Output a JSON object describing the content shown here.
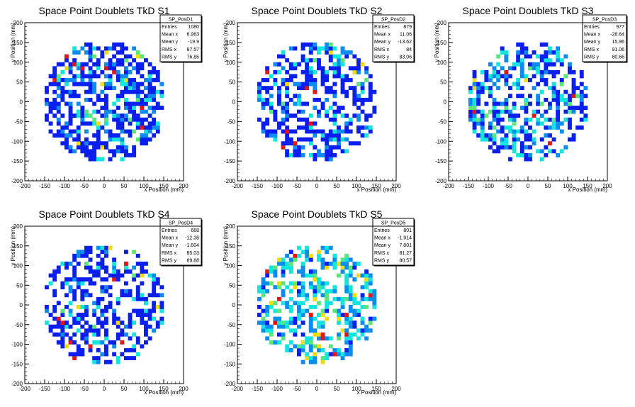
{
  "chart_data": [
    {
      "type": "heatmap",
      "title": "Space Point Doublets TkD S1",
      "xlabel": "x Position (mm)",
      "ylabel": "y Position (mm)",
      "xlim": [
        -200,
        200
      ],
      "ylim": [
        -200,
        200
      ],
      "xticks": [
        -200,
        -150,
        -100,
        -50,
        0,
        50,
        100,
        150,
        200
      ],
      "yticks": [
        -200,
        -150,
        -100,
        -50,
        0,
        50,
        100,
        150,
        200
      ],
      "stats": {
        "name": "SP_PosD1",
        "rows": [
          [
            "Entries",
            "1080"
          ],
          [
            "Mean x",
            "6.963"
          ],
          [
            "Mean y",
            "-19.9"
          ],
          [
            "RMS x",
            "87.57"
          ],
          [
            "RMS y",
            "76.85"
          ]
        ]
      },
      "seed": 11,
      "fill": 0.58,
      "level_weights": [
        0.62,
        0.22,
        0.11,
        0.02,
        0.02,
        0.01
      ],
      "hot_cells": [
        [
          95,
          -15,
          5
        ],
        [
          90,
          -75,
          5
        ],
        [
          85,
          5,
          3
        ]
      ]
    },
    {
      "type": "heatmap",
      "title": "Space Point Doublets TkD S2",
      "xlabel": "x Position (mm)",
      "ylabel": "y Position (mm)",
      "xlim": [
        -200,
        200
      ],
      "ylim": [
        -200,
        200
      ],
      "xticks": [
        -200,
        -150,
        -100,
        -50,
        0,
        50,
        100,
        150,
        200
      ],
      "yticks": [
        -200,
        -150,
        -100,
        -50,
        0,
        50,
        100,
        150,
        200
      ],
      "stats": {
        "name": "SP_PosD2",
        "rows": [
          [
            "Entries",
            "879"
          ],
          [
            "Mean x",
            "11.06"
          ],
          [
            "Mean y",
            "-13.62"
          ],
          [
            "RMS x",
            "84"
          ],
          [
            "RMS y",
            "83.06"
          ]
        ]
      },
      "seed": 23,
      "fill": 0.5,
      "level_weights": [
        0.66,
        0.18,
        0.12,
        0.02,
        0.01,
        0.01
      ],
      "hot_cells": [
        [
          -75,
          -75,
          5
        ],
        [
          115,
          -105,
          5
        ],
        [
          125,
          55,
          3
        ],
        [
          155,
          -25,
          3
        ]
      ]
    },
    {
      "type": "heatmap",
      "title": "Space Point Doublets TkD S3",
      "xlabel": "x Position (mm)",
      "ylabel": "y Position (mm)",
      "xlim": [
        -200,
        200
      ],
      "ylim": [
        -200,
        200
      ],
      "xticks": [
        -200,
        -150,
        -100,
        -50,
        0,
        50,
        100,
        150,
        200
      ],
      "yticks": [
        -200,
        -150,
        -100,
        -50,
        0,
        50,
        100,
        150,
        200
      ],
      "stats": {
        "name": "SP_PosD3",
        "rows": [
          [
            "Entries",
            "977"
          ],
          [
            "Mean x",
            "-28.64"
          ],
          [
            "Mean y",
            "15.96"
          ],
          [
            "RMS x",
            "91.06"
          ],
          [
            "RMS y",
            "80.66"
          ]
        ]
      },
      "seed": 37,
      "fill": 0.48,
      "level_weights": [
        0.5,
        0.22,
        0.22,
        0.04,
        0.01,
        0.01
      ],
      "hot_cells": [
        [
          -155,
          5,
          4
        ],
        [
          -145,
          -15,
          3
        ],
        [
          -135,
          35,
          4
        ]
      ]
    },
    {
      "type": "heatmap",
      "title": "Space Point Doublets TkD S4",
      "xlabel": "x Position (mm)",
      "ylabel": "y Position (mm)",
      "xlim": [
        -200,
        200
      ],
      "ylim": [
        -200,
        200
      ],
      "xticks": [
        -200,
        -150,
        -100,
        -50,
        0,
        50,
        100,
        150,
        200
      ],
      "yticks": [
        -200,
        -150,
        -100,
        -50,
        0,
        50,
        100,
        150,
        200
      ],
      "stats": {
        "name": "SP_PosD4",
        "rows": [
          [
            "Entries",
            "668"
          ],
          [
            "Mean x",
            "-12.38"
          ],
          [
            "Mean y",
            "-1.604"
          ],
          [
            "RMS x",
            "85.03"
          ],
          [
            "RMS y",
            "89.88"
          ]
        ]
      },
      "seed": 51,
      "fill": 0.44,
      "level_weights": [
        0.74,
        0.12,
        0.1,
        0.02,
        0.01,
        0.01
      ],
      "hot_cells": [
        [
          -85,
          -95,
          5
        ],
        [
          -95,
          -105,
          4
        ],
        [
          -125,
          125,
          3
        ]
      ]
    },
    {
      "type": "heatmap",
      "title": "Space Point Doublets TkD S5",
      "xlabel": "x Position (mm)",
      "ylabel": "y Position (mm)",
      "xlim": [
        -200,
        200
      ],
      "ylim": [
        -200,
        200
      ],
      "xticks": [
        -200,
        -150,
        -100,
        -50,
        0,
        50,
        100,
        150,
        200
      ],
      "yticks": [
        -200,
        -150,
        -100,
        -50,
        0,
        50,
        100,
        150,
        200
      ],
      "stats": {
        "name": "SP_PosD5",
        "rows": [
          [
            "Entries",
            "801"
          ],
          [
            "Mean x",
            "-1.914"
          ],
          [
            "Mean y",
            "7.801"
          ],
          [
            "RMS x",
            "81.27"
          ],
          [
            "RMS y",
            "80.57"
          ]
        ]
      },
      "seed": 67,
      "fill": 0.45,
      "level_weights": [
        0.08,
        0.38,
        0.38,
        0.1,
        0.04,
        0.02
      ],
      "hot_cells": [
        [
          75,
          -25,
          5
        ],
        [
          -35,
          -95,
          4
        ],
        [
          25,
          95,
          4
        ],
        [
          -55,
          45,
          4
        ],
        [
          105,
          75,
          4
        ]
      ]
    }
  ],
  "palette": [
    "#0a1ef0",
    "#0a8cf0",
    "#12e6dc",
    "#5ae678",
    "#f0dc14",
    "#e61414"
  ]
}
